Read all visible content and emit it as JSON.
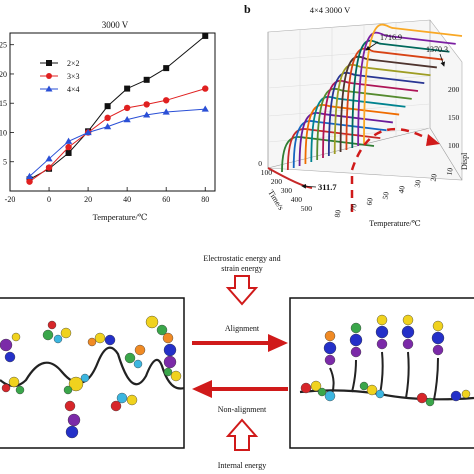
{
  "panel_a": {
    "title": "3000 V",
    "xlabel": "Temperature/℃",
    "x_ticks": [
      "-20",
      "0",
      "20",
      "40",
      "60",
      "80"
    ],
    "y_ticks": [
      "25",
      "20",
      "15",
      "10",
      "5"
    ],
    "legend": [
      "2×2",
      "3×3",
      "4×4"
    ]
  },
  "panel_b": {
    "letter": "b",
    "title": "4×4  3000 V",
    "peak_labels": [
      "1716.9",
      "1370.3",
      "311.7"
    ],
    "time_label": "Time/s",
    "time_ticks": [
      "0",
      "100",
      "200",
      "300",
      "400",
      "500"
    ],
    "temp_label": "Temperature/℃",
    "temp_ticks": [
      "80",
      "70",
      "60",
      "50",
      "40",
      "30",
      "20",
      "10"
    ],
    "z_label": "Displ",
    "z_ticks": [
      "200",
      "150",
      "100"
    ]
  },
  "schematic": {
    "top_text_line1": "Electrostatic energy and",
    "top_text_line2": "strain energy",
    "alignment": "Alignment",
    "non_alignment": "Non-alignment",
    "bottom_text": "Internal energy",
    "colors": {
      "arrow": "#cc1f1f",
      "box": "#111111"
    }
  },
  "chart_data": [
    {
      "type": "line",
      "title": "3000 V",
      "xlabel": "Temperature/℃",
      "ylabel": "",
      "xlim": [
        -20,
        85
      ],
      "ylim": [
        0,
        27
      ],
      "series": [
        {
          "name": "2×2",
          "color": "#111111",
          "marker": "square",
          "x": [
            -10,
            0,
            10,
            20,
            30,
            40,
            50,
            60,
            80
          ],
          "y": [
            2.0,
            3.8,
            6.5,
            10.2,
            14.5,
            17.5,
            19.0,
            21.0,
            26.5
          ]
        },
        {
          "name": "3×3",
          "color": "#e02020",
          "marker": "circle",
          "x": [
            -10,
            0,
            10,
            20,
            30,
            40,
            50,
            60,
            80
          ],
          "y": [
            1.6,
            4.0,
            7.5,
            10.0,
            12.5,
            14.2,
            14.8,
            15.5,
            17.5
          ]
        },
        {
          "name": "4×4",
          "color": "#2a4fd6",
          "marker": "triangle",
          "x": [
            -10,
            0,
            10,
            20,
            30,
            40,
            50,
            60,
            80
          ],
          "y": [
            2.5,
            5.5,
            8.5,
            10.0,
            11.0,
            12.2,
            13.0,
            13.5,
            14.0
          ]
        }
      ]
    },
    {
      "type": "line",
      "title": "4×4  3000 V",
      "xlabel": "Temperature/℃",
      "ylabel": "Time/s",
      "zlabel": "Displ",
      "annotations": [
        "1716.9",
        "1370.3",
        "311.7"
      ]
    }
  ]
}
